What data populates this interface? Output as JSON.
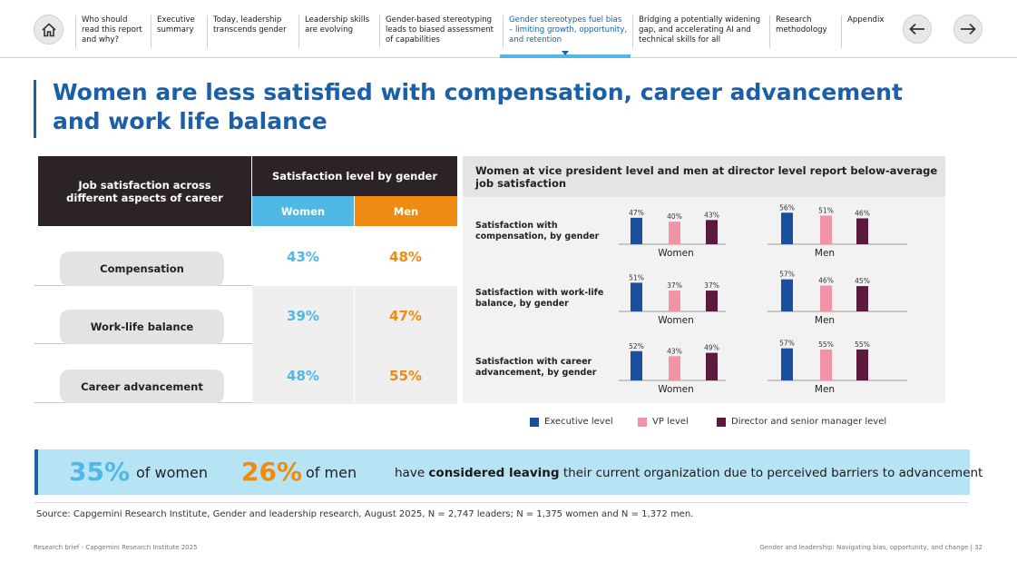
{
  "nav": {
    "items": [
      "Who should read this report and why?",
      "Executive summary",
      "Today, leadership transcends gender",
      "Leadership skills are evolving",
      "Gender-based stereotyping leads to biased assessment of capabilities",
      "Gender stereotypes fuel bias – limiting growth, opportunity, and retention",
      "Bridging a potentially widening gap, and accelerating AI and technical skills for all",
      "Research methodology",
      "Appendix"
    ],
    "active_index": 5
  },
  "title": "Women are less satisfied with compensation, career advancement and work life balance",
  "table": {
    "header_left": "Job satisfaction across different aspects of career",
    "header_right": "Satisfaction level by gender",
    "col_women": "Women",
    "col_men": "Men",
    "rows": [
      {
        "label": "Compensation",
        "women": "43%",
        "men": "48%"
      },
      {
        "label": "Work-life balance",
        "women": "39%",
        "men": "47%"
      },
      {
        "label": "Career advancement",
        "women": "48%",
        "men": "55%"
      }
    ]
  },
  "chart_header": "Women at vice president level and men at director level report below-average job satisfaction",
  "chart_data": {
    "type": "bar",
    "title": "Women at vice president level and men at director level report below-average job satisfaction",
    "series_names": [
      "Executive level",
      "VP level",
      "Director and senior manager level"
    ],
    "colors": [
      "#1a4fa0",
      "#f094a6",
      "#5b1a3e"
    ],
    "groups": [
      "Women",
      "Men"
    ],
    "ylim": [
      0,
      70
    ],
    "panels": [
      {
        "label": "Satisfaction with compensation, by gender",
        "values": {
          "Women": [
            47,
            40,
            43
          ],
          "Men": [
            56,
            51,
            46
          ]
        }
      },
      {
        "label": "Satisfaction with work-life balance, by gender",
        "values": {
          "Women": [
            51,
            37,
            37
          ],
          "Men": [
            57,
            46,
            45
          ]
        }
      },
      {
        "label": "Satisfaction with career advancement, by gender",
        "values": {
          "Women": [
            52,
            43,
            49
          ],
          "Men": [
            57,
            55,
            55
          ]
        }
      }
    ]
  },
  "legend": [
    "Executive level",
    "VP level",
    "Director and senior manager level"
  ],
  "stats": {
    "women_pct": "35%",
    "women_label": "of women",
    "men_pct": "26%",
    "men_label": "of men",
    "text_pre": "have ",
    "text_bold": "considered leaving",
    "text_post": " their current organization due to perceived barriers to advancement"
  },
  "colors": {
    "accent": "#1a5fa8",
    "women": "#4fb8e6",
    "men": "#ef8a12",
    "dark": "#2b2328"
  },
  "source": "Source: Capgemini Research Institute, Gender and leadership research, August 2025, N = 2,747 leaders; N = 1,375 women and N = 1,372 men.",
  "footer": {
    "left": "Research brief - Capgemini Research Institute 2025",
    "right": "Gender and leadership: Navigating bias, opportunity, and change  |  32"
  }
}
